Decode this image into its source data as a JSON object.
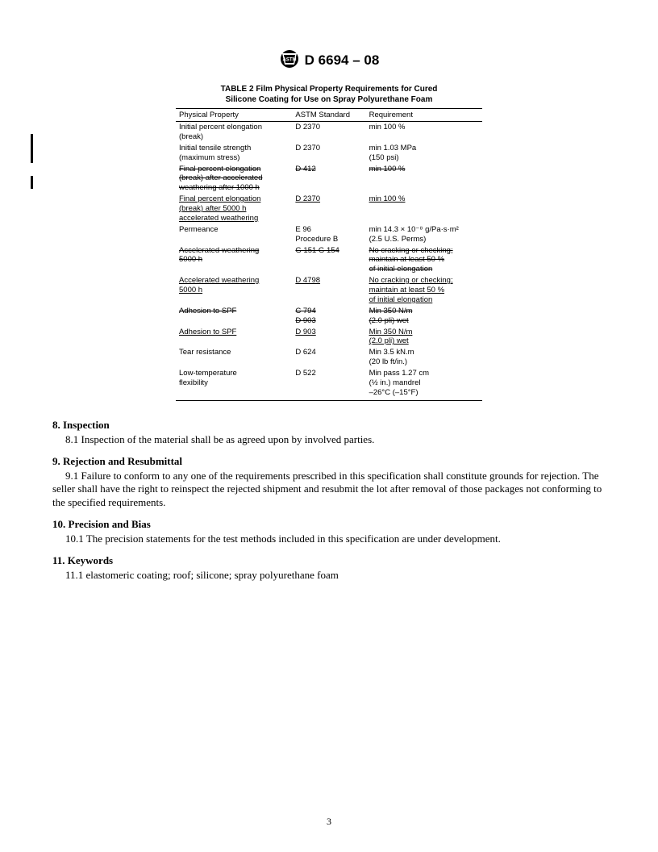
{
  "header": {
    "designation": "D 6694 – 08"
  },
  "table": {
    "title_line1": "TABLE 2  Film Physical Property Requirements for Cured",
    "title_line2": "Silicone Coating for Use on Spray Polyurethane Foam",
    "columns": [
      "Physical Property",
      "ASTM Standard",
      "Requirement"
    ],
    "rows": [
      {
        "p": [
          "Initial percent elongation",
          " (break)"
        ],
        "s": [
          "D 2370"
        ],
        "r": [
          "min 100 %"
        ]
      },
      {
        "p": [
          "Initial tensile strength",
          " (maximum stress)"
        ],
        "s": [
          "D 2370"
        ],
        "r": [
          "min 1.03 MPa",
          "(150 psi)"
        ]
      },
      {
        "p": [
          "Final percent elongation",
          " (break) after accelerated",
          " weathering after 1000 h"
        ],
        "s": [
          "D 412"
        ],
        "r": [
          "min 100 %"
        ],
        "strike": true
      },
      {
        "p": [
          "Final percent elongation",
          " (break) after 5000 h",
          " accelerated weathering"
        ],
        "s": [
          "D 2370"
        ],
        "r": [
          "min 100 %"
        ],
        "underline": true
      },
      {
        "p": [
          "Permeance"
        ],
        "s": [
          "E 96",
          "Procedure B"
        ],
        "r": [
          "min 14.3 × 10⁻⁸ g/Pa·s·m²",
          "(2.5 U.S. Perms)"
        ]
      },
      {
        "p": [
          "Accelerated weathering",
          " 5000 h"
        ],
        "s": [
          "G 151 G 154"
        ],
        "r": [
          "No cracking or checking;",
          " maintain at least 50 %",
          " of initial elongation"
        ],
        "strike": true
      },
      {
        "p": [
          "Accelerated weathering",
          " 5000 h"
        ],
        "s": [
          "D 4798"
        ],
        "r": [
          "No cracking or checking;",
          " maintain at least 50 %",
          " of initial elongation"
        ],
        "underline": true
      },
      {
        "p": [
          "Adhesion to SPF"
        ],
        "s": [
          "C 794",
          "D 903"
        ],
        "r": [
          "Min 350 N/m",
          "(2.0 pli) wet"
        ],
        "strike": true
      },
      {
        "p": [
          "Adhesion to SPF"
        ],
        "s": [
          "D 903"
        ],
        "r": [
          "Min 350 N/m",
          "(2.0 pli) wet"
        ],
        "underline": true
      },
      {
        "p": [
          "Tear resistance"
        ],
        "s": [
          "D 624"
        ],
        "r": [
          "Min 3.5 kN.m",
          "(20 lb ft/in.)"
        ]
      },
      {
        "p": [
          "Low-temperature",
          " flexibility"
        ],
        "s": [
          "D 522"
        ],
        "r": [
          "Min pass 1.27 cm",
          "(½ in.) mandrel",
          "–26°C (–15°F)"
        ]
      }
    ]
  },
  "sections": {
    "s8_h": "8. Inspection",
    "s8_1": "8.1 Inspection of the material shall be as agreed upon by involved parties.",
    "s9_h": "9. Rejection and Resubmittal",
    "s9_1": "9.1 Failure to conform to any one of the requirements prescribed in this specification shall constitute grounds for rejection. The seller shall have the right to reinspect the rejected shipment and resubmit the lot after removal of those packages not conforming to the specified requirements.",
    "s10_h": "10. Precision and Bias",
    "s10_1": "10.1 The precision statements for the test methods included in this specification are under development.",
    "s11_h": "11. Keywords",
    "s11_1": "11.1 elastomeric coating; roof; silicone; spray polyurethane foam"
  },
  "page_number": "3"
}
